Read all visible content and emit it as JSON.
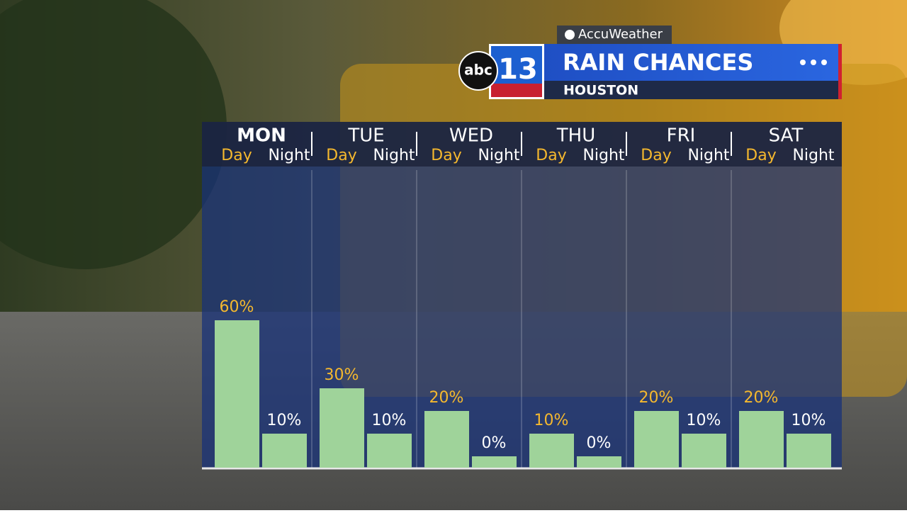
{
  "chart_data": {
    "type": "bar",
    "title": "RAIN CHANCES",
    "subtitle": "HOUSTON",
    "source": "AccuWeather",
    "logo_text": "abc",
    "logo_number": "13",
    "categories": [
      "MON",
      "TUE",
      "WED",
      "THU",
      "FRI",
      "SAT"
    ],
    "series": [
      {
        "name": "Day",
        "color": "#9fd39a",
        "label_color": "#f5b82e",
        "values": [
          60,
          30,
          20,
          10,
          20,
          20
        ],
        "value_labels": [
          "60%",
          "30%",
          "20%",
          "10%",
          "20%",
          "20%"
        ]
      },
      {
        "name": "Night",
        "color": "#9fd39a",
        "label_color": "#ffffff",
        "values": [
          10,
          10,
          0,
          0,
          10,
          10
        ],
        "value_labels": [
          "10%",
          "10%",
          "0%",
          "0%",
          "10%",
          "10%"
        ]
      }
    ],
    "ylim": [
      -5,
      65
    ]
  }
}
